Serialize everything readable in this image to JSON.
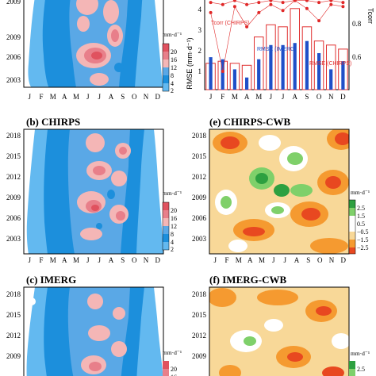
{
  "colors": {
    "precip": [
      "#ffffff",
      "#63b9f0",
      "#1c8fdc",
      "#5aa8e6",
      "#f4b6b6",
      "#e87f8a",
      "#e0525f"
    ],
    "diff": [
      "#e84820",
      "#f59a30",
      "#f8d898",
      "#ffffff",
      "#ffffff",
      "#7fd06a",
      "#2da040"
    ],
    "corr_line": "#e02828",
    "imerg_bar": "#1f4fc8",
    "chirps_bar": "#e03030"
  },
  "figure": {
    "months": [
      "J",
      "F",
      "M",
      "A",
      "M",
      "J",
      "J",
      "A",
      "S",
      "O",
      "N",
      "D"
    ],
    "panels": [
      {
        "id": "a",
        "title": "",
        "field": "precip",
        "year_labels": [
          "2009",
          "2006",
          "2003"
        ]
      },
      {
        "id": "b",
        "title": "(b) CHIRPS",
        "field": "precip",
        "year_labels": [
          "2018",
          "2015",
          "2012",
          "2009",
          "2006",
          "2003"
        ]
      },
      {
        "id": "c",
        "title": "(c) IMERG",
        "field": "precip",
        "year_labels": [
          "2018",
          "2015",
          "2012",
          "2009"
        ]
      },
      {
        "id": "e",
        "title": "(e) CHIRPS-CWB",
        "field": "diff",
        "year_labels": [
          "2018",
          "2015",
          "2012",
          "2009",
          "2006",
          "2003"
        ]
      },
      {
        "id": "f",
        "title": "(f) IMERG-CWB",
        "field": "diff",
        "year_labels": [
          "2018",
          "2015",
          "2012",
          "2009"
        ]
      }
    ],
    "precip_colorbar": {
      "unit": "mm·d⁻¹",
      "labels": [
        "20",
        "16",
        "12",
        "8",
        "4",
        "2"
      ]
    },
    "diff_colorbar": {
      "unit": "mm·d⁻¹",
      "labels": [
        "2.5",
        "1.5",
        "0.5",
        "−0.5",
        "−1.5",
        "−2.5"
      ]
    }
  },
  "chart_data": [
    {
      "type": "bar",
      "panel": "d",
      "categories": [
        "J",
        "F",
        "M",
        "A",
        "M",
        "J",
        "J",
        "A",
        "S",
        "O",
        "N",
        "D"
      ],
      "ylabel": "RMSE (mm·d⁻¹)",
      "ylim": [
        0,
        4.5
      ],
      "yticks": [
        "1",
        "2",
        "3",
        "4"
      ],
      "series": [
        {
          "name": "RMSE (CHIRPS)",
          "values": [
            1.3,
            1.4,
            1.3,
            1.2,
            2.6,
            3.2,
            3.1,
            4.0,
            3.1,
            2.4,
            2.2,
            2.0
          ]
        },
        {
          "name": "RMSE (IMERG)",
          "values": [
            1.6,
            1.5,
            1.0,
            0.6,
            1.5,
            2.2,
            2.2,
            2.3,
            2.4,
            1.8,
            1.0,
            1.4
          ]
        }
      ],
      "y2label": "Tcorr",
      "y2lim": [
        0.55,
        1.0
      ],
      "y2ticks": [
        "0.8",
        "0.6"
      ],
      "lines": [
        {
          "name": "Tcorr (CHIRPS)",
          "values": [
            0.93,
            0.64,
            0.96,
            0.86,
            0.93,
            0.97,
            0.94,
            0.99,
            0.95,
            0.89,
            0.97,
            0.96
          ]
        },
        {
          "name": "",
          "values": [
            0.98,
            0.97,
            0.99,
            0.97,
            0.98,
            0.99,
            0.98,
            0.99,
            0.99,
            0.98,
            0.99,
            0.98
          ]
        }
      ]
    }
  ]
}
